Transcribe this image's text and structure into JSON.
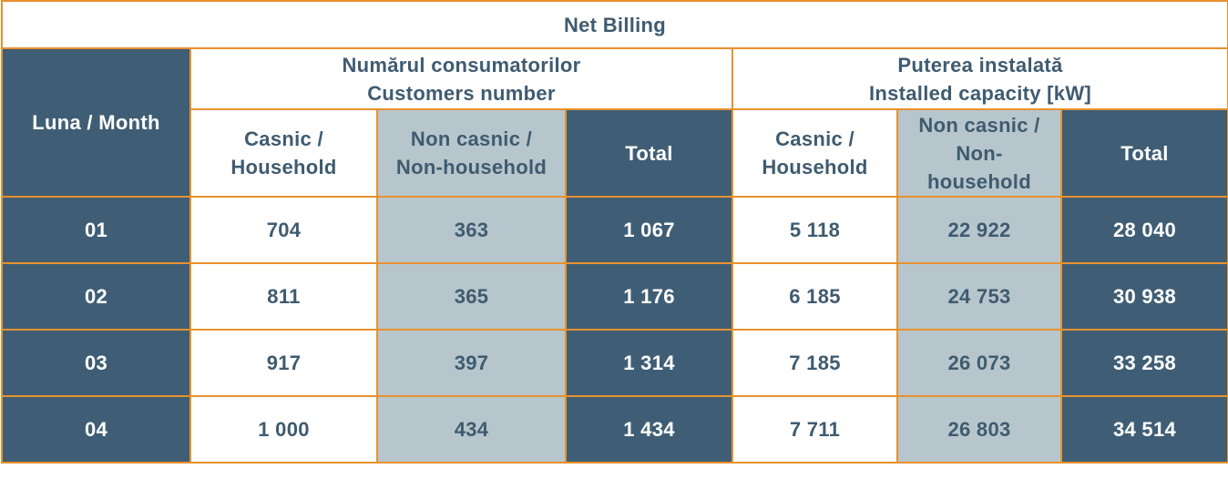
{
  "table": {
    "title": "Net Billing",
    "month_header": "Luna / Month",
    "group_customers": [
      "Numărul consumatorilor",
      "Customers number"
    ],
    "group_capacity": [
      "Puterea instalată",
      "Installed capacity [kW]"
    ],
    "sub_customers": {
      "household": [
        "Casnic /",
        "Household"
      ],
      "non_household": [
        "Non casnic /",
        "Non-household"
      ],
      "total": "Total"
    },
    "sub_capacity": {
      "household": [
        "Casnic /",
        "Household"
      ],
      "non_household": [
        "Non casnic /",
        "Non-",
        "household"
      ],
      "total": "Total"
    },
    "rows": [
      {
        "month": "01",
        "cust_household": "704",
        "cust_non_household": "363",
        "cust_total": "1 067",
        "cap_household": "5 118",
        "cap_non_household": "22 922",
        "cap_total": "28 040"
      },
      {
        "month": "02",
        "cust_household": "811",
        "cust_non_household": "365",
        "cust_total": "1 176",
        "cap_household": "6 185",
        "cap_non_household": "24 753",
        "cap_total": "30 938"
      },
      {
        "month": "03",
        "cust_household": "917",
        "cust_non_household": "397",
        "cust_total": "1 314",
        "cap_household": "7 185",
        "cap_non_household": "26 073",
        "cap_total": "33 258"
      },
      {
        "month": "04",
        "cust_household": "1 000",
        "cust_non_household": "434",
        "cust_total": "1 434",
        "cap_household": "7 711",
        "cap_non_household": "26 803",
        "cap_total": "34 514"
      }
    ],
    "colors": {
      "border": "#e8912d",
      "dark_fill": "#3f5e75",
      "grey_fill": "#b7c6cc",
      "text_dark": "#3f5b70",
      "text_light": "#ffffff"
    }
  }
}
